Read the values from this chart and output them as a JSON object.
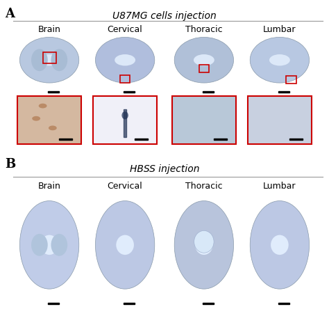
{
  "background_color": "#ffffff",
  "section_A_title": "U87MG cells injection",
  "section_B_title": "HBSS injection",
  "label_A": "A",
  "label_B": "B",
  "column_labels": [
    "Brain",
    "Cervical",
    "Thoracic",
    "Lumbar"
  ],
  "divider_color": "#888888",
  "red_box_color": "#cc0000",
  "scalebar_color": "#000000",
  "tissue_bg": "#c8d4e8",
  "tissue_detail_colors": {
    "brain_A": "#b8c8e0",
    "cervical_A": "#b0bedd",
    "thoracic_A": "#b0c0d8",
    "lumbar_A": "#b8c8e2",
    "brain_B": "#c0cce8",
    "cervical_B": "#bcc8e4",
    "thoracic_B": "#b8c4dc",
    "lumbar_B": "#bcc8e4"
  },
  "inset_bg_colors": {
    "brain": "#d4b8a0",
    "cervical": "#f0f0f8",
    "thoracic": "#b8c8d8",
    "lumbar": "#c8d0e0"
  },
  "title_fontsize": 10,
  "label_fontsize": 13,
  "col_label_fontsize": 9,
  "fig_width": 4.74,
  "fig_height": 4.54
}
